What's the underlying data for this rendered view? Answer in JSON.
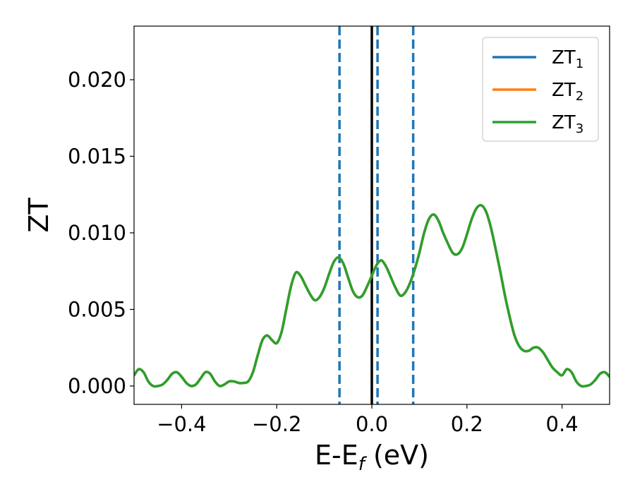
{
  "chart_data": {
    "type": "line",
    "title": "",
    "xlabel": {
      "main": "E-E",
      "sub": "f",
      "suffix": " (eV)"
    },
    "ylabel": "ZT",
    "xlim": [
      -0.5,
      0.5
    ],
    "ylim": [
      -0.0012,
      0.0235
    ],
    "xticks": [
      -0.4,
      -0.2,
      0.0,
      0.2,
      0.4
    ],
    "xtick_labels": [
      "−0.4",
      "−0.2",
      "0.0",
      "0.2",
      "0.4"
    ],
    "yticks": [
      0.0,
      0.005,
      0.01,
      0.015,
      0.02
    ],
    "ytick_labels": [
      "0.000",
      "0.005",
      "0.010",
      "0.015",
      "0.020"
    ],
    "grid": false,
    "legend_position": "top-right",
    "fermi_line": {
      "x": 0.0,
      "color": "#000000"
    },
    "dashed_lines": {
      "x": [
        -0.068,
        0.012,
        0.087
      ],
      "color": "#1f77b4"
    },
    "x": [
      -0.5,
      -0.49,
      -0.48,
      -0.47,
      -0.46,
      -0.45,
      -0.44,
      -0.43,
      -0.42,
      -0.41,
      -0.4,
      -0.39,
      -0.38,
      -0.37,
      -0.36,
      -0.35,
      -0.34,
      -0.33,
      -0.32,
      -0.31,
      -0.3,
      -0.29,
      -0.28,
      -0.27,
      -0.26,
      -0.25,
      -0.24,
      -0.23,
      -0.22,
      -0.21,
      -0.2,
      -0.19,
      -0.18,
      -0.17,
      -0.16,
      -0.15,
      -0.14,
      -0.13,
      -0.12,
      -0.11,
      -0.1,
      -0.09,
      -0.08,
      -0.07,
      -0.06,
      -0.05,
      -0.04,
      -0.03,
      -0.02,
      -0.01,
      0.0,
      0.01,
      0.02,
      0.03,
      0.04,
      0.05,
      0.06,
      0.07,
      0.08,
      0.09,
      0.1,
      0.11,
      0.12,
      0.13,
      0.14,
      0.15,
      0.16,
      0.17,
      0.18,
      0.19,
      0.2,
      0.21,
      0.22,
      0.23,
      0.24,
      0.25,
      0.26,
      0.27,
      0.28,
      0.29,
      0.3,
      0.31,
      0.32,
      0.33,
      0.34,
      0.35,
      0.36,
      0.37,
      0.38,
      0.39,
      0.4,
      0.41,
      0.42,
      0.43,
      0.44,
      0.45,
      0.46,
      0.47,
      0.48,
      0.49,
      0.5
    ],
    "series": [
      {
        "name": "ZT₁",
        "label_main": "ZT",
        "label_sub": "1",
        "color": "#1f77b4",
        "values": [
          0.0007,
          0.0011,
          0.0009,
          0.0003,
          0.0,
          0.0,
          0.0001,
          0.0004,
          0.0008,
          0.0009,
          0.0006,
          0.0002,
          0.0,
          0.0001,
          0.0005,
          0.0009,
          0.0008,
          0.0003,
          0.0,
          0.0001,
          0.0003,
          0.0003,
          0.0002,
          0.0002,
          0.0003,
          0.0009,
          0.002,
          0.003,
          0.0033,
          0.003,
          0.0028,
          0.0035,
          0.005,
          0.0065,
          0.0074,
          0.0072,
          0.0066,
          0.006,
          0.0056,
          0.0058,
          0.0064,
          0.0073,
          0.0081,
          0.0084,
          0.008,
          0.0071,
          0.0062,
          0.0058,
          0.0059,
          0.0065,
          0.0072,
          0.0079,
          0.0082,
          0.0078,
          0.0071,
          0.0064,
          0.0059,
          0.0061,
          0.0067,
          0.0076,
          0.0087,
          0.01,
          0.0109,
          0.0112,
          0.0108,
          0.01,
          0.0093,
          0.0087,
          0.0086,
          0.009,
          0.0099,
          0.0109,
          0.0116,
          0.0118,
          0.0114,
          0.0104,
          0.009,
          0.0075,
          0.0059,
          0.0045,
          0.0033,
          0.0026,
          0.0023,
          0.0023,
          0.0025,
          0.0025,
          0.0022,
          0.0017,
          0.0012,
          0.0009,
          0.0007,
          0.0011,
          0.0009,
          0.0003,
          0.0,
          0.0,
          0.0001,
          0.0004,
          0.0008,
          0.0009,
          0.0006
        ]
      },
      {
        "name": "ZT₂",
        "label_main": "ZT",
        "label_sub": "2",
        "color": "#ff7f0e",
        "same_as": "ZT₁"
      },
      {
        "name": "ZT₃",
        "label_main": "ZT",
        "label_sub": "3",
        "color": "#2ca02c",
        "same_as": "ZT₁"
      }
    ]
  }
}
